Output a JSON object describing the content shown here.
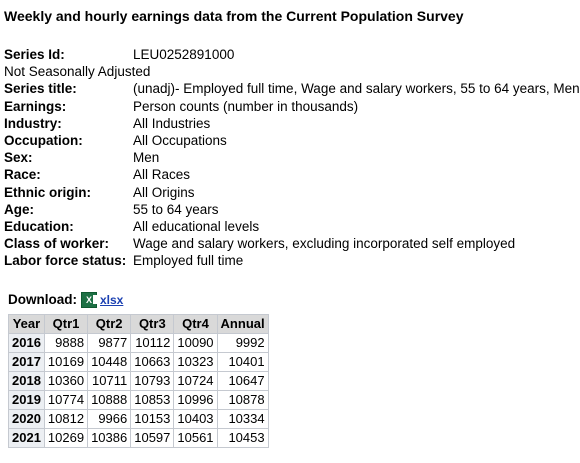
{
  "title": "Weekly and hourly earnings data from the Current Population Survey",
  "series_id": {
    "label": "Series Id:",
    "value": "LEU0252891000"
  },
  "seasonal": "Not Seasonally Adjusted",
  "meta": [
    {
      "label": "Series title:",
      "value": "(unadj)- Employed full time, Wage and salary workers, 55 to 64 years, Men"
    },
    {
      "label": "Earnings:",
      "value": "Person counts (number in thousands)"
    },
    {
      "label": "Industry:",
      "value": "All Industries"
    },
    {
      "label": "Occupation:",
      "value": "All Occupations"
    },
    {
      "label": "Sex:",
      "value": "Men"
    },
    {
      "label": "Race:",
      "value": "All Races"
    },
    {
      "label": "Ethnic origin:",
      "value": "All Origins"
    },
    {
      "label": "Age:",
      "value": "55 to 64 years"
    },
    {
      "label": "Education:",
      "value": "All educational levels"
    },
    {
      "label": "Class of worker:",
      "value": "Wage and salary workers, excluding incorporated self employed"
    },
    {
      "label": "Labor force status:",
      "value": "Employed full time"
    }
  ],
  "download": {
    "label": "Download:",
    "icon": "excel-icon",
    "link": "xlsx"
  },
  "table": {
    "headers": [
      "Year",
      "Qtr1",
      "Qtr2",
      "Qtr3",
      "Qtr4",
      "Annual"
    ],
    "rows": [
      [
        "2016",
        "9888",
        "9877",
        "10112",
        "10090",
        "9992"
      ],
      [
        "2017",
        "10169",
        "10448",
        "10663",
        "10323",
        "10401"
      ],
      [
        "2018",
        "10360",
        "10711",
        "10793",
        "10724",
        "10647"
      ],
      [
        "2019",
        "10774",
        "10888",
        "10853",
        "10996",
        "10878"
      ],
      [
        "2020",
        "10812",
        "9966",
        "10153",
        "10403",
        "10334"
      ],
      [
        "2021",
        "10269",
        "10386",
        "10597",
        "10561",
        "10453"
      ]
    ]
  }
}
